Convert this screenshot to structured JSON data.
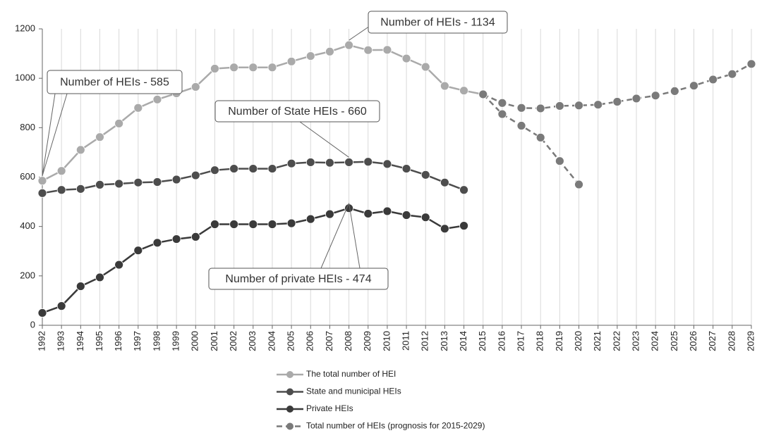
{
  "chart_data": {
    "type": "line",
    "categories": [
      "1992",
      "1993",
      "1994",
      "1995",
      "1996",
      "1997",
      "1998",
      "1999",
      "2000",
      "2001",
      "2002",
      "2003",
      "2004",
      "2005",
      "2006",
      "2007",
      "2008",
      "2009",
      "2010",
      "2011",
      "2012",
      "2013",
      "2014",
      "2015",
      "2016",
      "2017",
      "2018",
      "2019",
      "2020",
      "2021",
      "2022",
      "2023",
      "2024",
      "2025",
      "2026",
      "2027",
      "2028",
      "2029"
    ],
    "series": [
      {
        "name": "The total number of HEI",
        "color": "#aaaaaa",
        "dashed": false,
        "values": [
          585,
          625,
          710,
          762,
          817,
          880,
          914,
          939,
          965,
          1039,
          1044,
          1044,
          1044,
          1068,
          1090,
          1108,
          1134,
          1114,
          1115,
          1080,
          1046,
          969,
          950,
          935,
          null,
          null,
          null,
          null,
          null,
          null,
          null,
          null,
          null,
          null,
          null,
          null,
          null,
          null
        ]
      },
      {
        "name": "State and municipal HEIs",
        "color": "#4d4d4d",
        "dashed": false,
        "values": [
          535,
          548,
          552,
          569,
          573,
          578,
          580,
          590,
          607,
          628,
          634,
          634,
          634,
          655,
          660,
          658,
          660,
          662,
          653,
          634,
          609,
          578,
          548,
          null,
          null,
          null,
          null,
          null,
          null,
          null,
          null,
          null,
          null,
          null,
          null,
          null,
          null,
          null
        ]
      },
      {
        "name": "Private HEIs",
        "color": "#3a3a3a",
        "dashed": false,
        "values": [
          50,
          78,
          158,
          194,
          245,
          303,
          334,
          349,
          358,
          409,
          409,
          409,
          409,
          413,
          430,
          450,
          474,
          452,
          462,
          446,
          437,
          391,
          403,
          null,
          null,
          null,
          null,
          null,
          null,
          null,
          null,
          null,
          null,
          null,
          null,
          null,
          null,
          null
        ]
      },
      {
        "name": "Total number of HEIs (prognosis for 2015-2029)",
        "color": "#7a7a7a",
        "dashed": true,
        "values": [
          null,
          null,
          null,
          null,
          null,
          null,
          null,
          null,
          null,
          null,
          null,
          null,
          null,
          null,
          null,
          null,
          null,
          null,
          null,
          null,
          null,
          null,
          null,
          935,
          900,
          880,
          878,
          888,
          890,
          893,
          905,
          918,
          930,
          948,
          970,
          995,
          1017,
          1058
        ]
      },
      {
        "color": "#7a7a7a",
        "dashed": true,
        "values": [
          null,
          null,
          null,
          null,
          null,
          null,
          null,
          null,
          null,
          null,
          null,
          null,
          null,
          null,
          null,
          null,
          null,
          null,
          null,
          null,
          null,
          null,
          null,
          935,
          855,
          808,
          760,
          665,
          570,
          null,
          null,
          null,
          null,
          null,
          null,
          null,
          null,
          null
        ]
      }
    ],
    "ylim": [
      0,
      1200
    ],
    "yticks": [
      0,
      200,
      400,
      600,
      800,
      1000,
      1200
    ],
    "grid": true,
    "annotations": [
      {
        "text": "Number of HEIs - 585"
      },
      {
        "text": "Number of HEIs - 1134"
      },
      {
        "text": "Number of State HEIs - 660"
      },
      {
        "text": "Number of private HEIs - 474"
      }
    ]
  }
}
